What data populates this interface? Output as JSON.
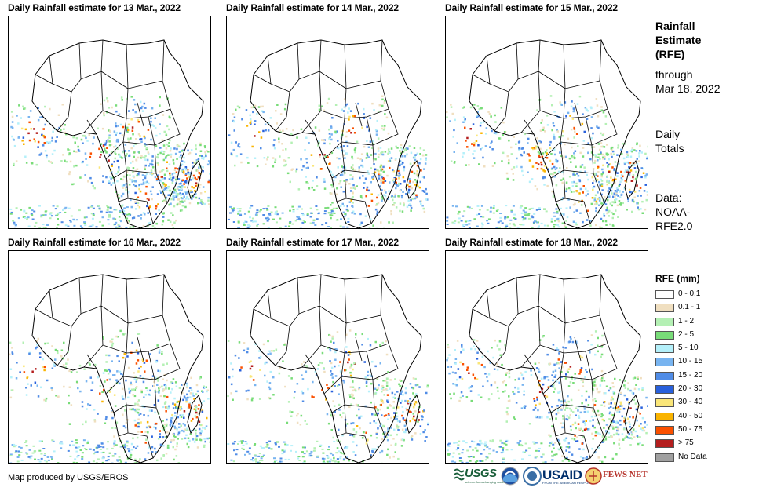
{
  "panels": [
    {
      "title": "Daily Rainfall estimate for 13 Mar., 2022",
      "rain_level": 0.95
    },
    {
      "title": "Daily Rainfall estimate for 14 Mar., 2022",
      "rain_level": 0.75
    },
    {
      "title": "Daily Rainfall estimate for 15 Mar., 2022",
      "rain_level": 0.85
    },
    {
      "title": "Daily Rainfall estimate for 16 Mar., 2022",
      "rain_level": 0.7
    },
    {
      "title": "Daily Rainfall estimate for 17 Mar., 2022",
      "rain_level": 0.6
    },
    {
      "title": "Daily Rainfall estimate for 18 Mar., 2022",
      "rain_level": 0.75
    }
  ],
  "side": {
    "title_line1": "Rainfall",
    "title_line2": "Estimate",
    "title_line3": "(RFE)",
    "through_line1": "through",
    "through_line2": "Mar 18, 2022",
    "totals_line1": "Daily",
    "totals_line2": "Totals",
    "data_line1": "Data:",
    "data_line2": "NOAA-",
    "data_line3": "RFE2.0"
  },
  "legend": {
    "title": "RFE (mm)",
    "items": [
      {
        "label": "0 - 0.1",
        "color": "#ffffff"
      },
      {
        "label": "0.1 - 1",
        "color": "#f0dfc0"
      },
      {
        "label": "1 - 2",
        "color": "#b4f0b4"
      },
      {
        "label": "2 - 5",
        "color": "#78dc78"
      },
      {
        "label": "5 - 10",
        "color": "#b4f0fa"
      },
      {
        "label": "10 - 15",
        "color": "#78b4f0"
      },
      {
        "label": "15 - 20",
        "color": "#508ce6"
      },
      {
        "label": "20 - 30",
        "color": "#2860dc"
      },
      {
        "label": "30 - 40",
        "color": "#fae678"
      },
      {
        "label": "40 - 50",
        "color": "#fab400"
      },
      {
        "label": "50 - 75",
        "color": "#fa5000"
      },
      {
        "label": "> 75",
        "color": "#b41e1e"
      },
      {
        "label": "No Data",
        "color": "#a0a0a0"
      }
    ]
  },
  "footer": {
    "credit": "Map produced by USGS/EROS",
    "usgs": "USGS",
    "usgs_tagline": "science for a changing world",
    "usaid": "USAID",
    "usaid_tagline": "FROM THE AMERICAN PEOPLE",
    "fews": "FEWS NET"
  }
}
